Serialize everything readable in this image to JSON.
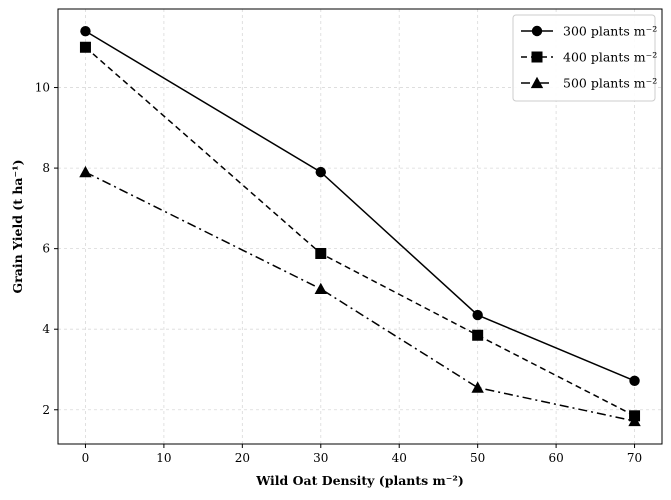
{
  "chart_data": {
    "type": "line",
    "title": "",
    "xlabel": "Wild Oat Density (plants m⁻²)",
    "ylabel": "Grain Yield (t ha⁻¹)",
    "xlim": [
      -3.5,
      73.5
    ],
    "ylim": [
      1.15,
      11.95
    ],
    "xticks": [
      0,
      10,
      20,
      30,
      40,
      50,
      60,
      70
    ],
    "yticks": [
      2,
      4,
      6,
      8,
      10
    ],
    "grid": true,
    "legend_position": "top-right",
    "x": [
      0,
      30,
      50,
      70
    ],
    "series": [
      {
        "name": "300 plants m⁻²",
        "values": [
          11.4,
          7.9,
          4.35,
          2.72
        ],
        "marker": "circle",
        "line_style": "solid",
        "color": "#000000"
      },
      {
        "name": "400 plants m⁻²",
        "values": [
          11.0,
          5.88,
          3.85,
          1.85
        ],
        "marker": "square",
        "line_style": "dashed",
        "color": "#000000"
      },
      {
        "name": "500 plants m⁻²",
        "values": [
          7.9,
          5.0,
          2.55,
          1.72
        ],
        "marker": "triangle",
        "line_style": "dashdot",
        "color": "#000000"
      }
    ]
  }
}
